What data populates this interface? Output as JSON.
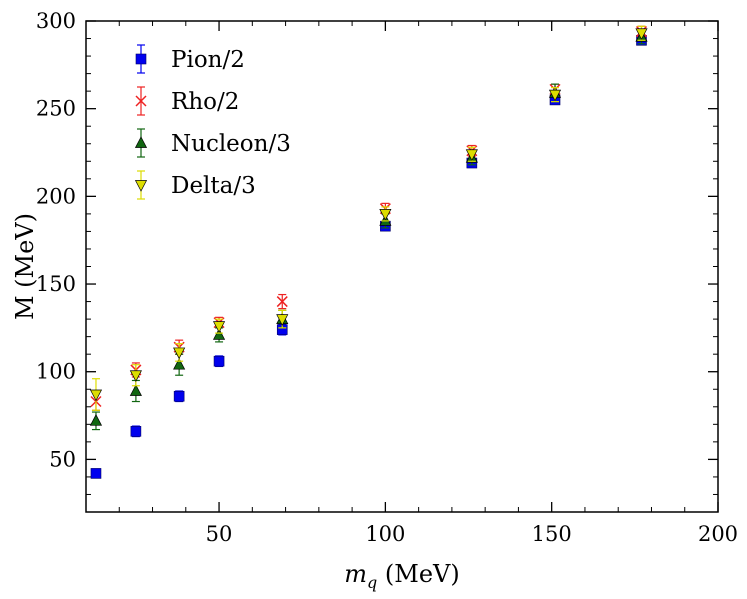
{
  "chart_data": {
    "type": "scatter",
    "title": "",
    "xlabel": {
      "main": "m",
      "sub": "q",
      "unit": " (MeV)"
    },
    "ylabel": "M (MeV)",
    "xlim": [
      10,
      200
    ],
    "ylim": [
      20,
      300
    ],
    "xticks": [
      50,
      100,
      150,
      200
    ],
    "yticks": [
      50,
      100,
      150,
      200,
      250,
      300
    ],
    "x_minor_step": 10,
    "y_minor_step": 10,
    "grid": false,
    "legend_position": "top-left",
    "series": [
      {
        "name": "Pion/2",
        "marker": "square",
        "color": "#0000ee",
        "points": [
          {
            "x": 13,
            "y": 42,
            "err": 2
          },
          {
            "x": 25,
            "y": 66,
            "err": 3
          },
          {
            "x": 38,
            "y": 86,
            "err": 3
          },
          {
            "x": 50,
            "y": 106,
            "err": 3
          },
          {
            "x": 69,
            "y": 124,
            "err": 3
          },
          {
            "x": 100,
            "y": 183,
            "err": 2
          },
          {
            "x": 126,
            "y": 219,
            "err": 2
          },
          {
            "x": 151,
            "y": 255,
            "err": 2
          },
          {
            "x": 177,
            "y": 289,
            "err": 2
          }
        ]
      },
      {
        "name": "Rho/2",
        "marker": "x",
        "color": "#ee2222",
        "points": [
          {
            "x": 13,
            "y": 83,
            "err": 5
          },
          {
            "x": 25,
            "y": 101,
            "err": 4
          },
          {
            "x": 38,
            "y": 114,
            "err": 4
          },
          {
            "x": 50,
            "y": 128,
            "err": 3
          },
          {
            "x": 69,
            "y": 140,
            "err": 4
          },
          {
            "x": 100,
            "y": 193,
            "err": 3
          },
          {
            "x": 126,
            "y": 226,
            "err": 3
          },
          {
            "x": 151,
            "y": 261,
            "err": 3
          },
          {
            "x": 177,
            "y": 294,
            "err": 3
          }
        ]
      },
      {
        "name": "Nucleon/3",
        "marker": "triangle-up",
        "color": "#116611",
        "points": [
          {
            "x": 13,
            "y": 72,
            "err": 5
          },
          {
            "x": 25,
            "y": 89,
            "err": 6
          },
          {
            "x": 38,
            "y": 104,
            "err": 6
          },
          {
            "x": 50,
            "y": 121,
            "err": 4
          },
          {
            "x": 69,
            "y": 130,
            "err": 5
          },
          {
            "x": 100,
            "y": 186,
            "err": 4
          },
          {
            "x": 126,
            "y": 222,
            "err": 4
          },
          {
            "x": 151,
            "y": 259,
            "err": 5
          },
          {
            "x": 177,
            "y": 291,
            "err": 4
          }
        ]
      },
      {
        "name": "Delta/3",
        "marker": "triangle-down",
        "color": "#dddd00",
        "points": [
          {
            "x": 13,
            "y": 87,
            "err": 9
          },
          {
            "x": 25,
            "y": 98,
            "err": 6
          },
          {
            "x": 38,
            "y": 111,
            "err": 5
          },
          {
            "x": 50,
            "y": 126,
            "err": 4
          },
          {
            "x": 69,
            "y": 130,
            "err": 5
          },
          {
            "x": 100,
            "y": 190,
            "err": 4
          },
          {
            "x": 126,
            "y": 224,
            "err": 4
          },
          {
            "x": 151,
            "y": 258,
            "err": 4
          },
          {
            "x": 177,
            "y": 293,
            "err": 4
          }
        ]
      }
    ]
  }
}
